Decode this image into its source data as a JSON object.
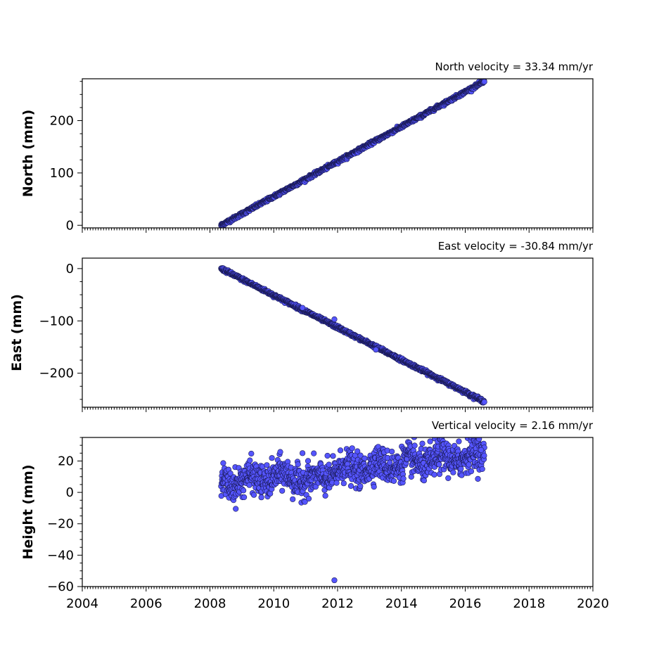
{
  "chart_data": [
    {
      "type": "scatter",
      "title": "North velocity = 33.34 mm/yr",
      "ylabel": "North (mm)",
      "xlim": [
        2004,
        2020
      ],
      "ylim": [
        -5,
        280
      ],
      "yticks": [
        0,
        100,
        200
      ],
      "ytick_labels": [
        "0",
        "100",
        "200"
      ],
      "x_start": 2008.35,
      "x_end": 2016.6,
      "velocity": 33.34,
      "offset": 0,
      "noise": 1.5,
      "show_xticklabels": false
    },
    {
      "type": "scatter",
      "title": "East velocity = -30.84 mm/yr",
      "ylabel": "East (mm)",
      "xlim": [
        2004,
        2020
      ],
      "ylim": [
        -265,
        20
      ],
      "yticks": [
        -200,
        -100,
        0
      ],
      "ytick_labels": [
        "−200",
        "−100",
        "0"
      ],
      "x_start": 2008.35,
      "x_end": 2016.6,
      "velocity": -30.84,
      "offset": 0,
      "noise": 1.5,
      "show_xticklabels": false
    },
    {
      "type": "scatter",
      "title": "Vertical velocity = 2.16 mm/yr",
      "ylabel": "Height (mm)",
      "xlim": [
        2004,
        2020
      ],
      "ylim": [
        -60,
        35
      ],
      "yticks": [
        -60,
        -40,
        -20,
        0,
        20
      ],
      "ytick_labels": [
        "−60",
        "−40",
        "−20",
        "0",
        "20"
      ],
      "x_start": 2008.35,
      "x_end": 2016.6,
      "velocity": 2.16,
      "offset": 6,
      "noise": 5,
      "show_xticklabels": true,
      "outliers": [
        [
          2011.9,
          -56
        ],
        [
          2014.9,
          32.5
        ],
        [
          2015.8,
          32.5
        ],
        [
          2013.7,
          26
        ],
        [
          2010.9,
          25
        ],
        [
          2016.5,
          27
        ]
      ]
    }
  ],
  "xticks": [
    2004,
    2006,
    2008,
    2010,
    2012,
    2014,
    2016,
    2018,
    2020
  ],
  "xtick_labels": [
    "2004",
    "2006",
    "2008",
    "2010",
    "2012",
    "2014",
    "2016",
    "2018",
    "2020"
  ],
  "colors": {
    "marker_fill": "#5555ff",
    "marker_edge": "#1a1a55"
  }
}
